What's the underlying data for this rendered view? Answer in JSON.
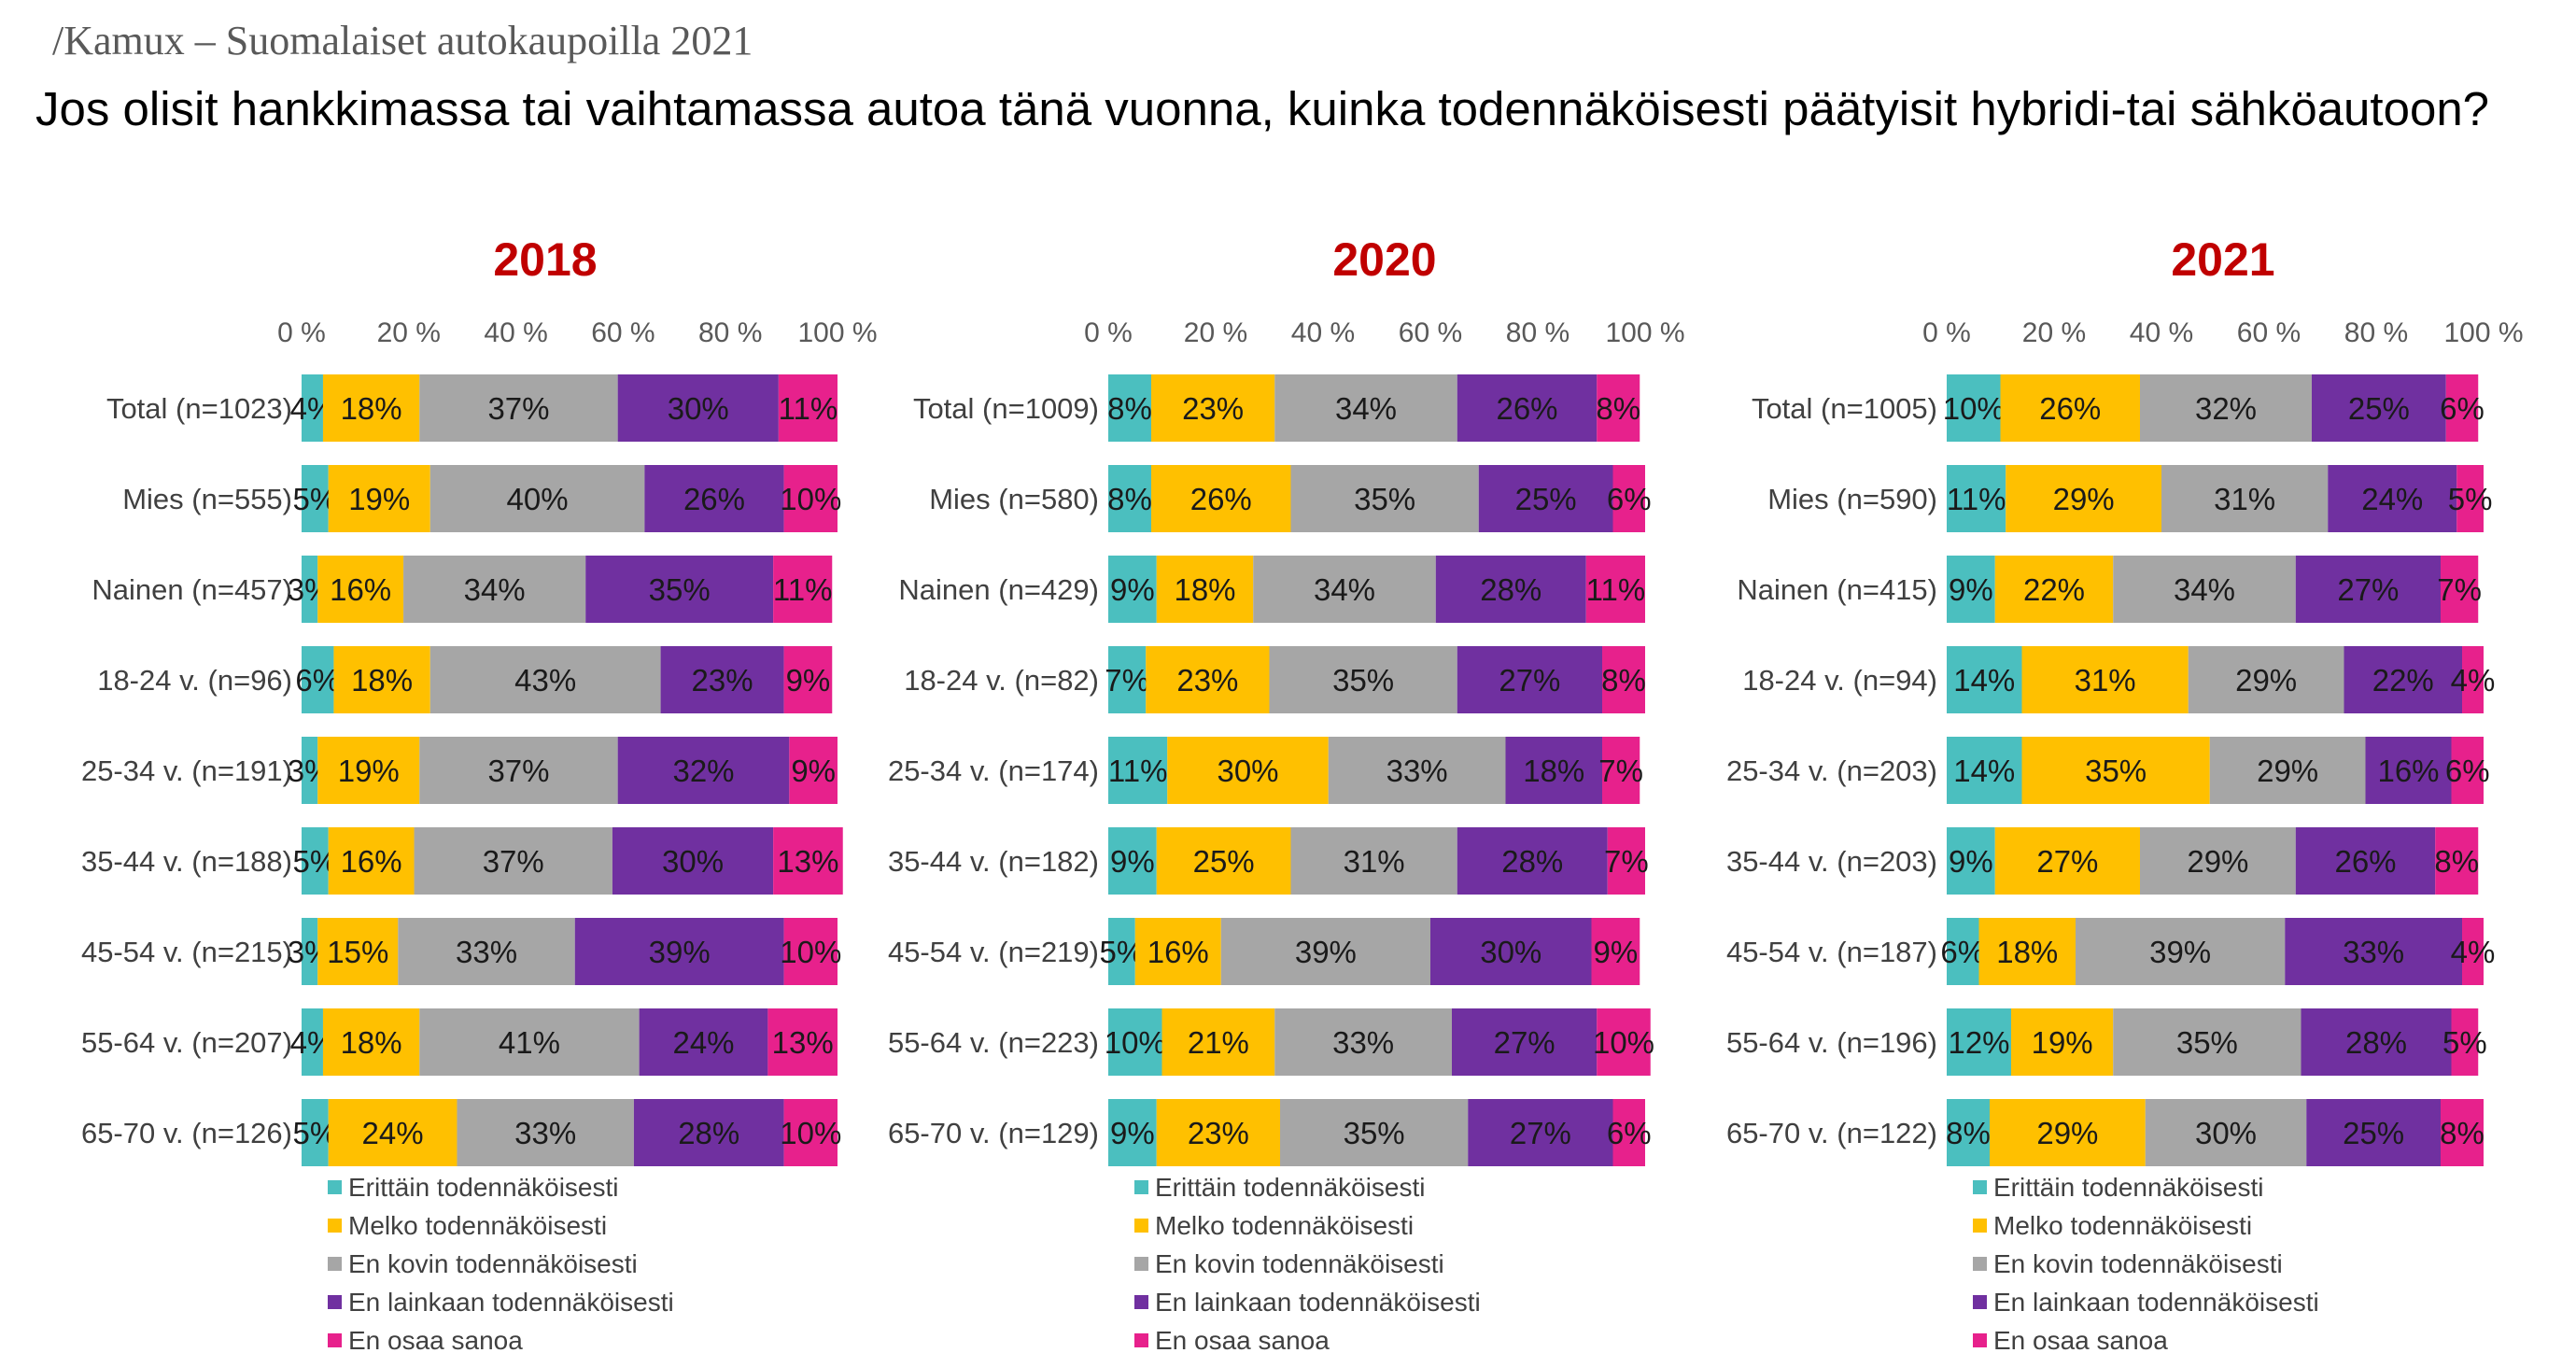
{
  "header": {
    "source": "/Kamux – Suomalaiset autokaupoilla 2021",
    "question": "Jos olisit hankkimassa tai vaihtamassa autoa tänä vuonna, kuinka todennäköisesti päätyisit hybridi-tai sähköautoon?"
  },
  "colors": {
    "series": [
      "#4bbfbf",
      "#ffc000",
      "#a6a6a6",
      "#7030a0",
      "#e7218c"
    ],
    "title": "#c00000"
  },
  "chart_data": [
    {
      "type": "bar",
      "orientation": "horizontal",
      "stacked": true,
      "title": "2018",
      "xlim": [
        0,
        100
      ],
      "xticks": [
        "0 %",
        "20 %",
        "40 %",
        "60 %",
        "80 %",
        "100 %"
      ],
      "legend_position": "bottom",
      "categories": [
        "Total (n=1023)",
        "Mies (n=555)",
        "Nainen (n=457)",
        "18-24 v. (n=96)",
        "25-34 v. (n=191)",
        "35-44 v. (n=188)",
        "45-54 v. (n=215)",
        "55-64 v. (n=207)",
        "65-70 v. (n=126)"
      ],
      "series": [
        {
          "name": "Erittäin todennäköisesti",
          "values": [
            4,
            5,
            3,
            6,
            3,
            5,
            3,
            4,
            5
          ]
        },
        {
          "name": "Melko todennäköisesti",
          "values": [
            18,
            19,
            16,
            18,
            19,
            16,
            15,
            18,
            24
          ]
        },
        {
          "name": "En kovin todennäköisesti",
          "values": [
            37,
            40,
            34,
            43,
            37,
            37,
            33,
            41,
            33
          ]
        },
        {
          "name": "En lainkaan todennäköisesti",
          "values": [
            30,
            26,
            35,
            23,
            32,
            30,
            39,
            24,
            28
          ]
        },
        {
          "name": "En osaa sanoa",
          "values": [
            11,
            10,
            11,
            9,
            9,
            13,
            10,
            13,
            10
          ]
        }
      ]
    },
    {
      "type": "bar",
      "orientation": "horizontal",
      "stacked": true,
      "title": "2020",
      "xlim": [
        0,
        100
      ],
      "xticks": [
        "0 %",
        "20 %",
        "40 %",
        "60 %",
        "80 %",
        "100 %"
      ],
      "legend_position": "bottom",
      "categories": [
        "Total (n=1009)",
        "Mies (n=580)",
        "Nainen (n=429)",
        "18-24 v. (n=82)",
        "25-34 v. (n=174)",
        "35-44 v. (n=182)",
        "45-54 v. (n=219)",
        "55-64 v. (n=223)",
        "65-70 v. (n=129)"
      ],
      "series": [
        {
          "name": "Erittäin todennäköisesti",
          "values": [
            8,
            8,
            9,
            7,
            11,
            9,
            5,
            10,
            9
          ]
        },
        {
          "name": "Melko todennäköisesti",
          "values": [
            23,
            26,
            18,
            23,
            30,
            25,
            16,
            21,
            23
          ]
        },
        {
          "name": "En kovin todennäköisesti",
          "values": [
            34,
            35,
            34,
            35,
            33,
            31,
            39,
            33,
            35
          ]
        },
        {
          "name": "En lainkaan todennäköisesti",
          "values": [
            26,
            25,
            28,
            27,
            18,
            28,
            30,
            27,
            27
          ]
        },
        {
          "name": "En osaa sanoa",
          "values": [
            8,
            6,
            11,
            8,
            7,
            7,
            9,
            10,
            6
          ]
        }
      ]
    },
    {
      "type": "bar",
      "orientation": "horizontal",
      "stacked": true,
      "title": "2021",
      "xlim": [
        0,
        100
      ],
      "xticks": [
        "0 %",
        "20 %",
        "40 %",
        "60 %",
        "80 %",
        "100 %"
      ],
      "legend_position": "bottom",
      "categories": [
        "Total (n=1005)",
        "Mies (n=590)",
        "Nainen (n=415)",
        "18-24 v. (n=94)",
        "25-34 v. (n=203)",
        "35-44 v. (n=203)",
        "45-54 v. (n=187)",
        "55-64 v. (n=196)",
        "65-70 v. (n=122)"
      ],
      "series": [
        {
          "name": "Erittäin todennäköisesti",
          "values": [
            10,
            11,
            9,
            14,
            14,
            9,
            6,
            12,
            8
          ]
        },
        {
          "name": "Melko todennäköisesti",
          "values": [
            26,
            29,
            22,
            31,
            35,
            27,
            18,
            19,
            29
          ]
        },
        {
          "name": "En kovin todennäköisesti",
          "values": [
            32,
            31,
            34,
            29,
            29,
            29,
            39,
            35,
            30
          ]
        },
        {
          "name": "En lainkaan todennäköisesti",
          "values": [
            25,
            24,
            27,
            22,
            16,
            26,
            33,
            28,
            25
          ]
        },
        {
          "name": "En osaa sanoa",
          "values": [
            6,
            5,
            7,
            4,
            6,
            8,
            4,
            5,
            8
          ]
        }
      ]
    }
  ]
}
